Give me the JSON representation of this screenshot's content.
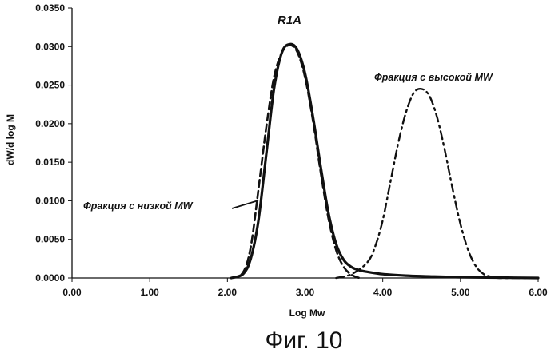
{
  "chart_data": {
    "type": "line",
    "title": "R1A",
    "xlabel": "Log Mw",
    "ylabel": "dW/d log M",
    "xlim": [
      0,
      6
    ],
    "ylim": [
      0,
      0.035
    ],
    "x_ticks": [
      "0.00",
      "1.00",
      "2.00",
      "3.00",
      "4.00",
      "5.00",
      "6.00"
    ],
    "y_ticks": [
      "0.0000",
      "0.0050",
      "0.0100",
      "0.0150",
      "0.0200",
      "0.0250",
      "0.0300",
      "0.0350"
    ],
    "grid": false,
    "series": [
      {
        "id": "whole",
        "style": "solid",
        "x": [
          2.05,
          2.2,
          2.3,
          2.4,
          2.5,
          2.6,
          2.7,
          2.8,
          2.9,
          3.0,
          3.1,
          3.2,
          3.3,
          3.4,
          3.5,
          3.6,
          3.7,
          3.8,
          4.0,
          4.3,
          4.6,
          5.0,
          5.5,
          6.0
        ],
        "y": [
          0.0,
          0.0005,
          0.0025,
          0.0075,
          0.016,
          0.0245,
          0.0292,
          0.0303,
          0.0296,
          0.0265,
          0.021,
          0.0145,
          0.0085,
          0.0044,
          0.0023,
          0.0014,
          0.001,
          0.0008,
          0.0005,
          0.0003,
          0.0002,
          0.0001,
          5e-05,
          0.0
        ]
      },
      {
        "id": "low",
        "style": "dashed",
        "x": [
          2.05,
          2.2,
          2.3,
          2.4,
          2.5,
          2.6,
          2.7,
          2.8,
          2.9,
          3.0,
          3.1,
          3.2,
          3.3,
          3.4,
          3.5,
          3.6,
          3.7
        ],
        "y": [
          0.0,
          0.0007,
          0.004,
          0.0115,
          0.0195,
          0.026,
          0.0292,
          0.0302,
          0.0293,
          0.026,
          0.0205,
          0.0138,
          0.0078,
          0.0036,
          0.0014,
          0.0004,
          0.0
        ]
      },
      {
        "id": "high",
        "style": "dashdot",
        "x": [
          3.4,
          3.6,
          3.8,
          3.9,
          4.0,
          4.1,
          4.2,
          4.3,
          4.4,
          4.5,
          4.6,
          4.7,
          4.8,
          4.9,
          5.0,
          5.1,
          5.2,
          5.3,
          5.4,
          5.5,
          5.7,
          6.0
        ],
        "y": [
          0.0,
          0.0005,
          0.002,
          0.004,
          0.0075,
          0.0125,
          0.0175,
          0.0215,
          0.024,
          0.0245,
          0.0236,
          0.0208,
          0.0165,
          0.0115,
          0.007,
          0.0036,
          0.0015,
          0.0005,
          0.00015,
          0.0,
          0.0,
          0.0
        ]
      }
    ],
    "annotations": [
      {
        "id": "low",
        "text": "Фракция с низкой MW"
      },
      {
        "id": "high",
        "text": "Фракция с высокой MW"
      }
    ]
  },
  "caption": "Фиг. 10"
}
